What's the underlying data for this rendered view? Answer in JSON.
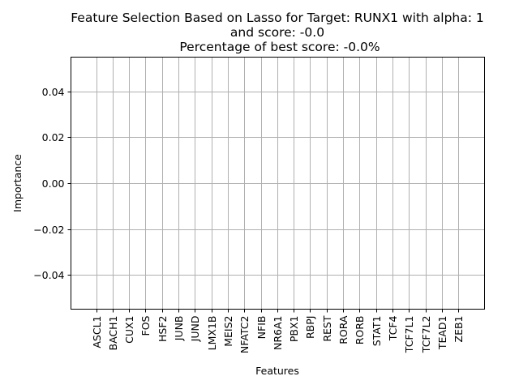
{
  "chart_data": {
    "type": "bar",
    "title_lines": [
      "Feature Selection Based on Lasso for Target: RUNX1 with alpha: 1",
      "and score: -0.0",
      "Percentage of best score: -0.0%"
    ],
    "xlabel": "Features",
    "ylabel": "Importance",
    "categories": [
      "ASCL1",
      "BACH1",
      "CUX1",
      "FOS",
      "HSF2",
      "JUNB",
      "JUND",
      "LMX1B",
      "MEIS2",
      "NFATC2",
      "NFIB",
      "NR6A1",
      "PBX1",
      "RBPJ",
      "REST",
      "RORA",
      "RORB",
      "STAT1",
      "TCF4",
      "TCF7L1",
      "TCF7L2",
      "TEAD1",
      "ZEB1"
    ],
    "values": [
      0,
      0,
      0,
      0,
      0,
      0,
      0,
      0,
      0,
      0,
      0,
      0,
      0,
      0,
      0,
      0,
      0,
      0,
      0,
      0,
      0,
      0,
      0
    ],
    "ylim": [
      -0.055,
      0.055
    ],
    "yticks": [
      -0.04,
      -0.02,
      0.0,
      0.02,
      0.04
    ],
    "ytick_labels": [
      "−0.04",
      "−0.02",
      "0.00",
      "0.02",
      "0.04"
    ],
    "grid": true
  }
}
